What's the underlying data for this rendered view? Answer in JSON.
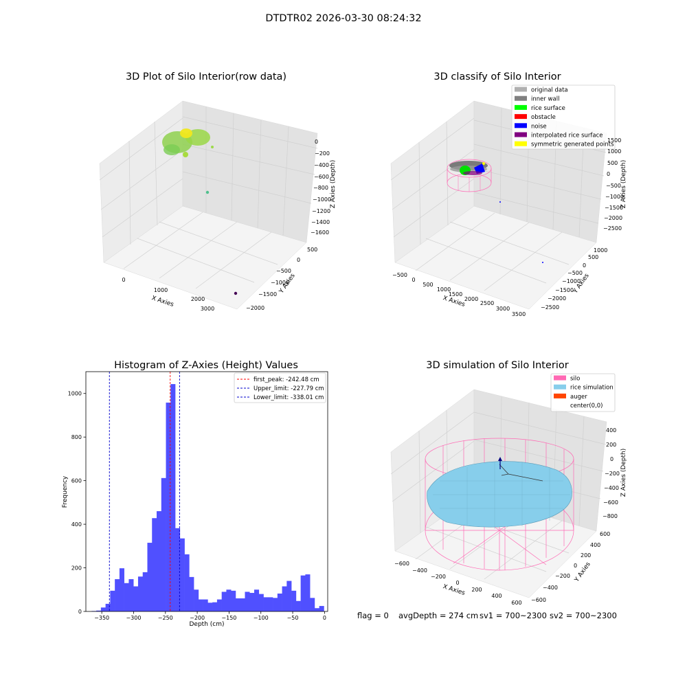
{
  "figure": {
    "suptitle": "DTDTR02 2026-03-30 08:24:32",
    "status": {
      "flag": "flag = 0",
      "avg_depth": "avgDepth = 274 cm",
      "sv1": "sv1 = 700~2300",
      "sv2": "sv2 = 700~2300"
    }
  },
  "colors": {
    "histogram_bar": "#5050ff",
    "peak_line": "#ff0000",
    "limit_line": "#0000cc",
    "pane_left": "#ececec",
    "pane_right": "#e3e3e3",
    "pane_floor": "#f4f4f4",
    "grid": "#d6d6d6",
    "silo_wire": "#ff69b4",
    "rice_sim": "#87ceeb"
  },
  "chart_data": [
    {
      "type": "scatter",
      "projection": "3d",
      "title": "3D Plot of Silo Interior(row data)",
      "xlabel": "X Axies",
      "ylabel": "Y Axies",
      "zlabel": "Z Axies (Depth)",
      "x_ticks": [
        "0",
        "1000",
        "2000",
        "3000"
      ],
      "y_ticks": [
        "500",
        "0",
        "−1000",
        "−1500",
        "−2000"
      ],
      "y_tick_500": "−500",
      "z_ticks": [
        "0",
        "−200",
        "−400",
        "−600",
        "−800",
        "−1000",
        "−1200",
        "−1400",
        "−1600"
      ],
      "point_cloud": "dense cluster of points near x≈0, z≈0 colored by depth (green to yellow)",
      "outliers": [
        {
          "x": 1200,
          "y": 0,
          "z": -850,
          "color": "#4fc08d"
        },
        {
          "x": 3200,
          "y": -2000,
          "z": -1700,
          "color": "#440154"
        }
      ],
      "grid": true
    },
    {
      "type": "scatter",
      "projection": "3d",
      "title": "3D classify of Silo Interior",
      "xlabel": "X Axies",
      "ylabel": "Y Axies",
      "zlabel": "Z Axies (Depth)",
      "x_ticks": [
        "−500",
        "0",
        "500",
        "1000",
        "1500",
        "2000",
        "2500",
        "3000",
        "3500"
      ],
      "y_ticks": [
        "1000",
        "500",
        "0",
        "−500",
        "−1000",
        "−1500",
        "−2000",
        "−2500"
      ],
      "z_ticks": [
        "1000",
        "500",
        "0",
        "−500",
        "−1000",
        "−1500",
        "−2000",
        "−2500"
      ],
      "z_tick_top": "1500",
      "legend": [
        {
          "label": "original data",
          "color": "#b0b0b0"
        },
        {
          "label": "inner wall",
          "color": "#808080"
        },
        {
          "label": "rice surface",
          "color": "#00ff00"
        },
        {
          "label": "obstacle",
          "color": "#ff0000"
        },
        {
          "label": "noise",
          "color": "#0000ff"
        },
        {
          "label": "interpolated rice surface",
          "color": "#800080"
        },
        {
          "label": "symmetric generated points",
          "color": "#ffff00"
        }
      ],
      "legend_loc": "upper right",
      "grid": true
    },
    {
      "type": "bar",
      "title": "Histogram of Z-Axies (Height) Values",
      "xlabel": "Depth (cm)",
      "ylabel": "Frequency",
      "xlim": [
        -375,
        5
      ],
      "ylim": [
        0,
        1100
      ],
      "x_ticks": [
        -350,
        -300,
        -250,
        -200,
        -150,
        -100,
        -50,
        0
      ],
      "x_tick_labels": [
        "−350",
        "−300",
        "−250",
        "−200",
        "−150",
        "−100",
        "−50",
        "0"
      ],
      "y_ticks": [
        0,
        200,
        400,
        600,
        800,
        1000
      ],
      "y_tick_labels": [
        "0",
        "200",
        "400",
        "600",
        "800",
        "1000"
      ],
      "bin_start": -366,
      "bin_width": 7.3,
      "values": [
        2,
        4,
        18,
        35,
        95,
        148,
        198,
        130,
        148,
        115,
        160,
        180,
        315,
        428,
        460,
        612,
        958,
        1043,
        382,
        335,
        262,
        158,
        100,
        55,
        55,
        40,
        42,
        55,
        90,
        100,
        95,
        60,
        60,
        90,
        85,
        100,
        80,
        65,
        65,
        62,
        82,
        115,
        140,
        95,
        48,
        165,
        170,
        62,
        15,
        25
      ],
      "vlines": [
        {
          "x": -242.48,
          "label": "first_peak: -242.48 cm",
          "color": "#ff0000"
        },
        {
          "x": -227.79,
          "label": "Upper_limit: -227.79 cm",
          "color": "#0000cc"
        },
        {
          "x": -338.01,
          "label": "Lower_limit: -338.01 cm",
          "color": "#0000cc"
        }
      ],
      "legend_loc": "upper right",
      "grid": false
    },
    {
      "type": "surface",
      "projection": "3d",
      "title": "3D simulation of Silo Interior",
      "xlabel": "X Axies",
      "ylabel": "Y Axies",
      "zlabel": "Z Axies (Depth)",
      "x_ticks": [
        "−600",
        "−400",
        "−200",
        "0",
        "200",
        "400",
        "600"
      ],
      "y_ticks": [
        "600",
        "400",
        "200",
        "0",
        "−200",
        "−400",
        "−600"
      ],
      "z_ticks": [
        "400",
        "200",
        "0",
        "−200",
        "−400",
        "−600",
        "−800"
      ],
      "legend": [
        {
          "label": "silo",
          "color": "#ff69b4"
        },
        {
          "label": "rice simulation",
          "color": "#87ceeb"
        },
        {
          "label": "auger",
          "color": "#ff4500"
        },
        {
          "label": "center(0,0)",
          "color": "#ffffff"
        }
      ],
      "legend_loc": "upper right",
      "grid": true
    }
  ]
}
